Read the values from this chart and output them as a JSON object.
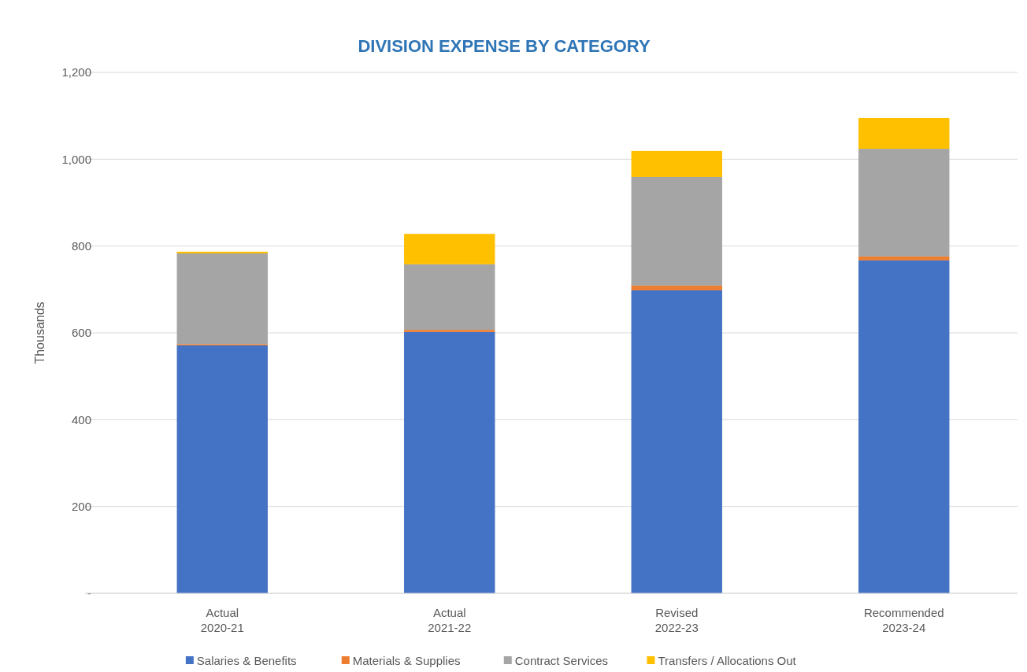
{
  "chart_data": {
    "type": "bar",
    "stacked": true,
    "title": "DIVISION EXPENSE BY CATEGORY",
    "ylabel": "Thousands",
    "categories": [
      "Actual\n2020-21",
      "Actual\n2021-22",
      "Revised\n2022-23",
      "Recommended\n2023-24"
    ],
    "series": [
      {
        "name": "Salaries & Benefits",
        "color": "#4472c4",
        "values": [
          571,
          602,
          698,
          767
        ]
      },
      {
        "name": "Materials & Supplies",
        "color": "#ed7d31",
        "values": [
          3,
          5,
          11,
          9
        ]
      },
      {
        "name": "Contract Services",
        "color": "#a5a5a5",
        "values": [
          209,
          151,
          250,
          248
        ]
      },
      {
        "name": "Transfers / Allocations Out",
        "color": "#ffc000",
        "values": [
          4,
          70,
          60,
          71
        ]
      }
    ],
    "ylim": [
      0,
      1200
    ],
    "yticks": [
      {
        "value": 0,
        "label": "-"
      },
      200,
      400,
      600,
      800,
      {
        "value": 1000,
        "label": "1,000"
      },
      {
        "value": 1200,
        "label": "1,200"
      }
    ],
    "grid": "y",
    "legend": "bottom"
  }
}
